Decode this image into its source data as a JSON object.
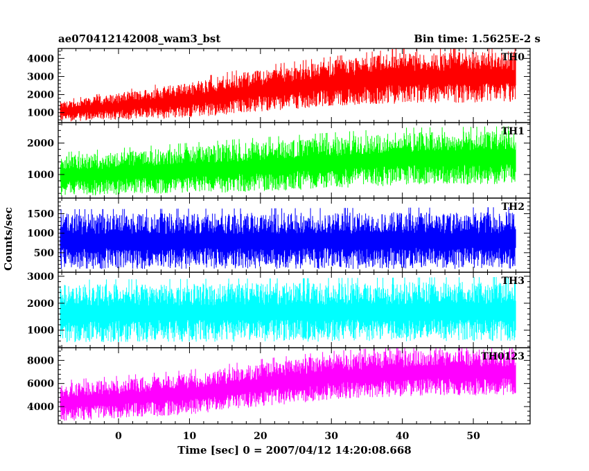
{
  "header": {
    "title": "ae070412142008_wam3_bst",
    "bin_time": "Bin time: 1.5625E-2 s"
  },
  "chart_data": {
    "type": "line",
    "xlabel": "Time [sec] 0 = 2007/04/12 14:20:08.668",
    "ylabel": "Counts/sec",
    "xlim": [
      -8.5,
      58
    ],
    "x_ticks": [
      0,
      10,
      20,
      30,
      40,
      50
    ],
    "x_range_data": [
      -8.2,
      56
    ],
    "panels": [
      {
        "name": "TH0",
        "color": "#ff0000",
        "ylim": [
          450,
          4550
        ],
        "yticks": [
          1000,
          2000,
          3000,
          4000
        ],
        "envelope_low": [
          [
            -8,
            500
          ],
          [
            10,
            700
          ],
          [
            20,
            1050
          ],
          [
            30,
            1350
          ],
          [
            40,
            1500
          ],
          [
            56,
            1600
          ]
        ],
        "envelope_high": [
          [
            -8,
            1600
          ],
          [
            10,
            2700
          ],
          [
            20,
            3400
          ],
          [
            30,
            3900
          ],
          [
            40,
            4350
          ],
          [
            56,
            4400
          ]
        ]
      },
      {
        "name": "TH1",
        "color": "#00ff00",
        "ylim": [
          250,
          2650
        ],
        "yticks": [
          1000,
          2000
        ],
        "envelope_low": [
          [
            -8,
            300
          ],
          [
            20,
            450
          ],
          [
            40,
            650
          ],
          [
            56,
            700
          ]
        ],
        "envelope_high": [
          [
            -8,
            1600
          ],
          [
            20,
            2050
          ],
          [
            40,
            2350
          ],
          [
            56,
            2400
          ]
        ]
      },
      {
        "name": "TH2",
        "color": "#0000ff",
        "ylim": [
          0,
          1900
        ],
        "yticks": [
          500,
          1000,
          1500
        ],
        "envelope_low": [
          [
            -8,
            80
          ],
          [
            56,
            80
          ]
        ],
        "envelope_high": [
          [
            -8,
            1500
          ],
          [
            56,
            1550
          ]
        ]
      },
      {
        "name": "TH3",
        "color": "#00ffff",
        "ylim": [
          350,
          3150
        ],
        "yticks": [
          1000,
          2000,
          3000
        ],
        "envelope_low": [
          [
            -8,
            550
          ],
          [
            56,
            600
          ]
        ],
        "envelope_high": [
          [
            -8,
            2700
          ],
          [
            56,
            2800
          ]
        ]
      },
      {
        "name": "TH0123",
        "color": "#ff00ff",
        "ylim": [
          2500,
          9100
        ],
        "yticks": [
          4000,
          6000,
          8000
        ],
        "envelope_low": [
          [
            -8,
            2700
          ],
          [
            10,
            3300
          ],
          [
            20,
            4000
          ],
          [
            30,
            4600
          ],
          [
            40,
            4900
          ],
          [
            56,
            5000
          ]
        ],
        "envelope_high": [
          [
            -8,
            6000
          ],
          [
            10,
            6900
          ],
          [
            20,
            7800
          ],
          [
            30,
            8500
          ],
          [
            40,
            8900
          ],
          [
            56,
            9000
          ]
        ]
      }
    ]
  }
}
